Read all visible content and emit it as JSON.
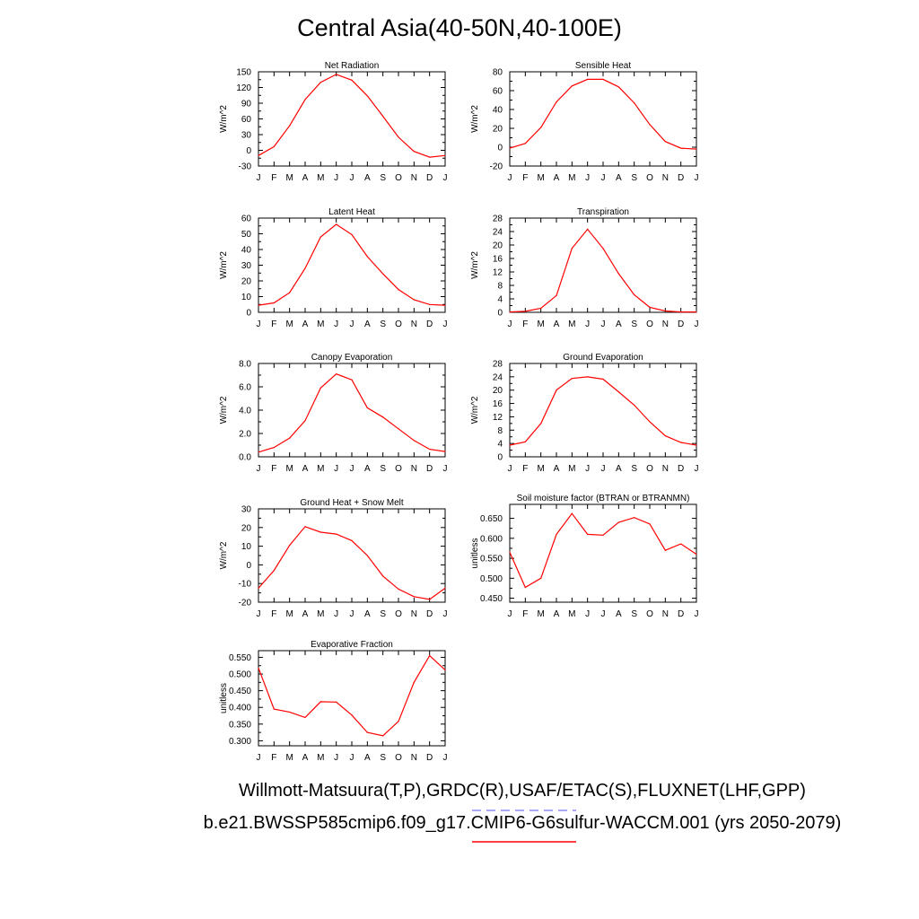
{
  "page": {
    "title": "Central Asia(40-50N,40-100E)",
    "footer_obs": "Willmott-Matsuura(T,P),GRDC(R),USAF/ETAC(S),FLUXNET(LHF,GPP)",
    "footer_case": "b.e21.BWSSP585cmip6.f09_g17.CMIP6-G6sulfur-WACCM.001 (yrs 2050-2079)",
    "obs_line_color": "#8c8cf0",
    "model_line_color": "#ff0000"
  },
  "chart_data": [
    {
      "type": "line",
      "title": "Net Radiation",
      "ylabel": "W/m^2",
      "categories": [
        "J",
        "F",
        "M",
        "A",
        "M",
        "J",
        "J",
        "A",
        "S",
        "O",
        "N",
        "D",
        "J"
      ],
      "yticks": [
        -30,
        0,
        30,
        60,
        90,
        120,
        150
      ],
      "ytick_labels": [
        "-30",
        "0",
        "30",
        "60",
        "90",
        "120",
        "150"
      ],
      "ylim": [
        -30,
        150
      ],
      "series": [
        {
          "values": [
            -10,
            7,
            47,
            97,
            130,
            145,
            134,
            104,
            65,
            25,
            -2,
            -13,
            -10
          ],
          "color": "#ff0000"
        }
      ]
    },
    {
      "type": "line",
      "title": "Sensible Heat",
      "ylabel": "W/m^2",
      "categories": [
        "J",
        "F",
        "M",
        "A",
        "M",
        "J",
        "J",
        "A",
        "S",
        "O",
        "N",
        "D",
        "J"
      ],
      "yticks": [
        -20,
        0,
        20,
        40,
        60,
        80
      ],
      "ytick_labels": [
        "-20",
        "0",
        "20",
        "40",
        "60",
        "80"
      ],
      "ylim": [
        -20,
        80
      ],
      "series": [
        {
          "values": [
            -1,
            4,
            21,
            48,
            65,
            72,
            72,
            64,
            47,
            24,
            6,
            -1,
            -2
          ],
          "color": "#ff0000"
        }
      ]
    },
    {
      "type": "line",
      "title": "Latent Heat",
      "ylabel": "W/m^2",
      "categories": [
        "J",
        "F",
        "M",
        "A",
        "M",
        "J",
        "J",
        "A",
        "S",
        "O",
        "N",
        "D",
        "J"
      ],
      "yticks": [
        0,
        10,
        20,
        30,
        40,
        50,
        60
      ],
      "ytick_labels": [
        "0",
        "10",
        "20",
        "30",
        "40",
        "50",
        "60"
      ],
      "ylim": [
        0,
        60
      ],
      "series": [
        {
          "values": [
            4.5,
            6,
            12.5,
            28,
            48,
            56,
            49.5,
            35.5,
            24.5,
            14.5,
            8,
            5,
            4.5
          ],
          "color": "#ff0000"
        }
      ]
    },
    {
      "type": "line",
      "title": "Transpiration",
      "ylabel": "W/m^2",
      "categories": [
        "J",
        "F",
        "M",
        "A",
        "M",
        "J",
        "J",
        "A",
        "S",
        "O",
        "N",
        "D",
        "J"
      ],
      "yticks": [
        0,
        4,
        8,
        12,
        16,
        20,
        24,
        28
      ],
      "ytick_labels": [
        "0",
        "4",
        "8",
        "12",
        "16",
        "20",
        "24",
        "28"
      ],
      "ylim": [
        0,
        28
      ],
      "series": [
        {
          "values": [
            0.1,
            0.3,
            1.2,
            5,
            19,
            24.7,
            19,
            11.5,
            5.2,
            1.5,
            0.4,
            0.1,
            0.1
          ],
          "color": "#ff0000"
        }
      ]
    },
    {
      "type": "line",
      "title": "Canopy Evaporation",
      "ylabel": "W/m^2",
      "categories": [
        "J",
        "F",
        "M",
        "A",
        "M",
        "J",
        "J",
        "A",
        "S",
        "O",
        "N",
        "D",
        "J"
      ],
      "yticks": [
        0,
        2,
        4,
        6,
        8
      ],
      "ytick_labels": [
        "0.0",
        "2.0",
        "4.0",
        "6.0",
        "8.0"
      ],
      "ylim": [
        0,
        8
      ],
      "series": [
        {
          "values": [
            0.4,
            0.8,
            1.6,
            3.1,
            5.9,
            7.1,
            6.6,
            4.2,
            3.4,
            2.4,
            1.4,
            0.65,
            0.45
          ],
          "color": "#ff0000"
        }
      ]
    },
    {
      "type": "line",
      "title": "Ground Evaporation",
      "ylabel": "W/m^2",
      "categories": [
        "J",
        "F",
        "M",
        "A",
        "M",
        "J",
        "J",
        "A",
        "S",
        "O",
        "N",
        "D",
        "J"
      ],
      "yticks": [
        0,
        4,
        8,
        12,
        16,
        20,
        24,
        28
      ],
      "ytick_labels": [
        "0",
        "4",
        "8",
        "12",
        "16",
        "20",
        "24",
        "28"
      ],
      "ylim": [
        0,
        28
      ],
      "series": [
        {
          "values": [
            3.5,
            4.5,
            10,
            20,
            23.5,
            24,
            23.3,
            19.5,
            15.5,
            10.5,
            6.3,
            4.3,
            3.5
          ],
          "color": "#ff0000"
        }
      ]
    },
    {
      "type": "line",
      "title": "Ground Heat + Snow Melt",
      "ylabel": "W/m^2",
      "categories": [
        "J",
        "F",
        "M",
        "A",
        "M",
        "J",
        "J",
        "A",
        "S",
        "O",
        "N",
        "D",
        "J"
      ],
      "yticks": [
        -20,
        -10,
        0,
        10,
        20,
        30
      ],
      "ytick_labels": [
        "-20",
        "-10",
        "0",
        "10",
        "20",
        "30"
      ],
      "ylim": [
        -20,
        30
      ],
      "series": [
        {
          "values": [
            -12.5,
            -3,
            10.5,
            20.5,
            17.5,
            16.5,
            13,
            5,
            -6,
            -13,
            -17,
            -18.5,
            -12.5
          ],
          "color": "#ff0000"
        }
      ]
    },
    {
      "type": "line",
      "title": "Soil moisture factor (BTRAN or BTRANMN)",
      "ylabel": "unitless",
      "categories": [
        "J",
        "F",
        "M",
        "A",
        "M",
        "J",
        "J",
        "A",
        "S",
        "O",
        "N",
        "D",
        "J"
      ],
      "yticks": [
        0.45,
        0.5,
        0.55,
        0.6,
        0.65
      ],
      "ytick_labels": [
        "0.450",
        "0.500",
        "0.550",
        "0.600",
        "0.650"
      ],
      "ylim": [
        0.44,
        0.685
      ],
      "series": [
        {
          "values": [
            0.565,
            0.477,
            0.5,
            0.61,
            0.662,
            0.61,
            0.608,
            0.64,
            0.652,
            0.636,
            0.57,
            0.586,
            0.56
          ],
          "color": "#ff0000"
        }
      ]
    },
    {
      "type": "line",
      "title": "Evaporative Fraction",
      "ylabel": "unitless",
      "categories": [
        "J",
        "F",
        "M",
        "A",
        "M",
        "J",
        "J",
        "A",
        "S",
        "O",
        "N",
        "D",
        "J"
      ],
      "yticks": [
        0.3,
        0.35,
        0.4,
        0.45,
        0.5,
        0.55
      ],
      "ytick_labels": [
        "0.300",
        "0.350",
        "0.400",
        "0.450",
        "0.500",
        "0.550"
      ],
      "ylim": [
        0.285,
        0.57
      ],
      "series": [
        {
          "values": [
            0.518,
            0.395,
            0.386,
            0.37,
            0.417,
            0.416,
            0.377,
            0.325,
            0.315,
            0.358,
            0.475,
            0.555,
            0.512
          ],
          "color": "#ff0000"
        }
      ]
    }
  ]
}
